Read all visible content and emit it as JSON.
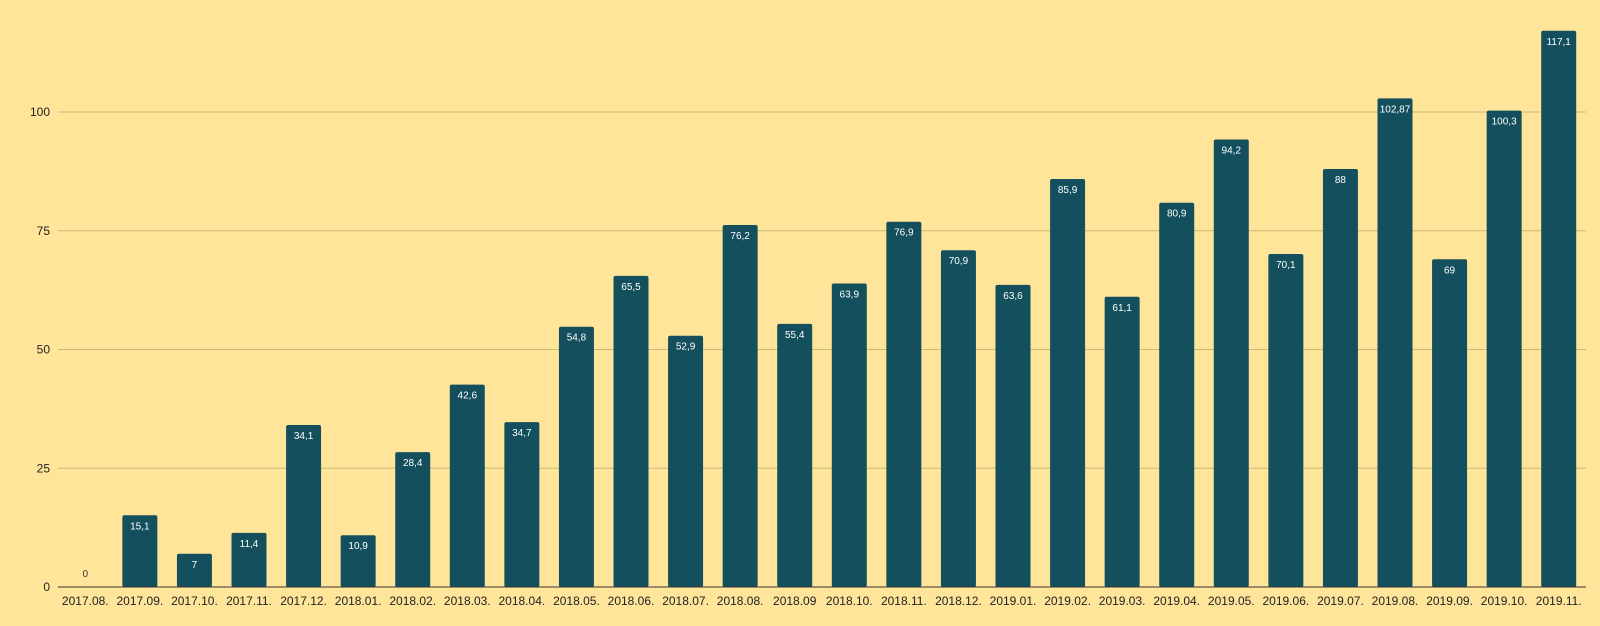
{
  "chart_data": {
    "type": "bar",
    "title": "",
    "xlabel": "",
    "ylabel": "",
    "ylim": [
      0,
      125
    ],
    "yticks": [
      0,
      25,
      50,
      75,
      100
    ],
    "grid": true,
    "legend": "none",
    "categories": [
      "2017.08.",
      "2017.09.",
      "2017.10.",
      "2017.11.",
      "2017.12.",
      "2018.01.",
      "2018.02.",
      "2018.03.",
      "2018.04.",
      "2018.05.",
      "2018.06.",
      "2018.07.",
      "2018.08.",
      "2018.09",
      "2018.10.",
      "2018.11.",
      "2018.12.",
      "2019.01.",
      "2019.02.",
      "2019.03.",
      "2019.04.",
      "2019.05.",
      "2019.06.",
      "2019.07.",
      "2019.08.",
      "2019.09.",
      "2019.10.",
      "2019.11."
    ],
    "values": [
      0,
      15.1,
      7,
      11.4,
      34.1,
      10.9,
      28.4,
      42.6,
      34.7,
      54.8,
      65.5,
      52.9,
      76.2,
      55.4,
      63.9,
      76.9,
      70.9,
      63.6,
      85.9,
      61.1,
      80.9,
      94.2,
      70.1,
      88,
      102.87,
      69,
      100.3,
      117.1
    ],
    "data_labels": [
      "0",
      "15,1",
      "7",
      "11,4",
      "34,1",
      "10,9",
      "28,4",
      "42,6",
      "34,7",
      "54,8",
      "65,5",
      "52,9",
      "76,2",
      "55,4",
      "63,9",
      "76,9",
      "70,9",
      "63,6",
      "85,9",
      "61,1",
      "80,9",
      "94,2",
      "70,1",
      "88",
      "102,87",
      "69",
      "100,3",
      "117,1"
    ],
    "colors": {
      "background": "#ffe599",
      "bar": "#134f5c",
      "gridline": "#c9b97a",
      "axis": "#333333"
    }
  }
}
